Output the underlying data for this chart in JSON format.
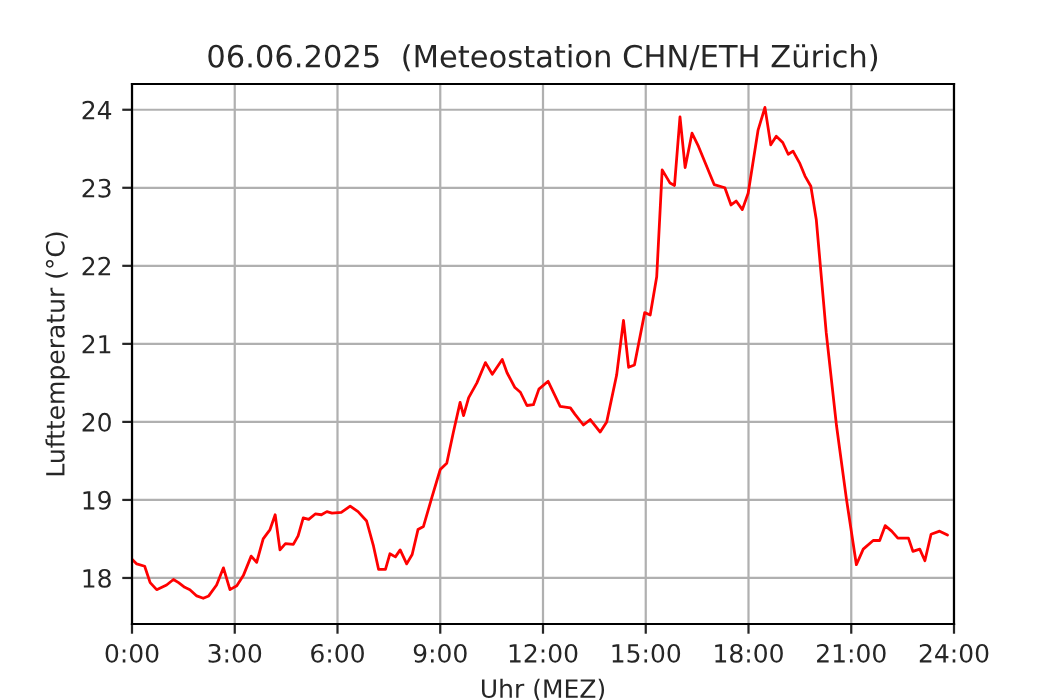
{
  "chart_data": {
    "type": "line",
    "title": "06.06.2025  (Meteostation CHN/ETH Zürich)",
    "xlabel": "Uhr (MEZ)",
    "ylabel": "Lufttemperatur (°C)",
    "x": [
      0.0,
      0.14,
      0.37,
      0.53,
      0.72,
      1.01,
      1.21,
      1.36,
      1.54,
      1.69,
      1.89,
      2.08,
      2.24,
      2.47,
      2.67,
      2.86,
      3.06,
      3.25,
      3.48,
      3.64,
      3.83,
      4.03,
      4.18,
      4.32,
      4.48,
      4.71,
      4.85,
      5.0,
      5.16,
      5.35,
      5.53,
      5.69,
      5.84,
      6.11,
      6.37,
      6.6,
      6.85,
      7.05,
      7.2,
      7.4,
      7.53,
      7.69,
      7.83,
      8.02,
      8.18,
      8.35,
      8.51,
      8.76,
      9.0,
      9.19,
      9.38,
      9.58,
      9.68,
      9.83,
      10.07,
      10.32,
      10.52,
      10.81,
      10.95,
      11.18,
      11.34,
      11.53,
      11.72,
      11.88,
      12.15,
      12.5,
      12.8,
      12.93,
      13.18,
      13.38,
      13.67,
      13.86,
      14.15,
      14.35,
      14.5,
      14.67,
      14.97,
      15.13,
      15.32,
      15.48,
      15.71,
      15.84,
      16.0,
      16.15,
      16.35,
      16.54,
      17.0,
      17.31,
      17.49,
      17.64,
      17.82,
      17.99,
      18.28,
      18.48,
      18.65,
      18.81,
      19.0,
      19.16,
      19.3,
      19.49,
      19.65,
      19.82,
      19.98,
      20.27,
      20.57,
      20.86,
      21.15,
      21.35,
      21.64,
      21.83,
      21.99,
      22.18,
      22.36,
      22.67,
      22.8,
      23.0,
      23.15,
      23.33,
      23.58,
      23.81
    ],
    "series": [
      {
        "color": "#ff0000",
        "values": [
          18.24,
          18.18,
          18.15,
          17.94,
          17.85,
          17.91,
          17.98,
          17.94,
          17.88,
          17.85,
          17.77,
          17.74,
          17.77,
          17.91,
          18.13,
          17.85,
          17.9,
          18.03,
          18.28,
          18.2,
          18.5,
          18.62,
          18.81,
          18.36,
          18.44,
          18.43,
          18.54,
          18.77,
          18.75,
          18.82,
          18.81,
          18.85,
          18.83,
          18.84,
          18.92,
          18.85,
          18.73,
          18.41,
          18.11,
          18.11,
          18.31,
          18.27,
          18.36,
          18.18,
          18.3,
          18.62,
          18.66,
          19.04,
          19.39,
          19.47,
          19.86,
          20.25,
          20.08,
          20.31,
          20.5,
          20.76,
          20.61,
          20.8,
          20.63,
          20.44,
          20.38,
          20.21,
          20.22,
          20.42,
          20.52,
          20.2,
          20.18,
          20.1,
          19.96,
          20.03,
          19.87,
          20.0,
          20.6,
          21.3,
          20.7,
          20.73,
          21.4,
          21.37,
          21.86,
          23.23,
          23.06,
          23.03,
          23.91,
          23.26,
          23.7,
          23.53,
          23.04,
          23.0,
          22.78,
          22.83,
          22.72,
          22.93,
          23.74,
          24.03,
          23.55,
          23.66,
          23.58,
          23.43,
          23.47,
          23.32,
          23.15,
          23.02,
          22.59,
          21.14,
          19.95,
          19.01,
          18.17,
          18.37,
          18.48,
          18.48,
          18.67,
          18.6,
          18.51,
          18.51,
          18.34,
          18.37,
          18.22,
          18.56,
          18.6,
          18.55
        ]
      }
    ],
    "xlim": [
      0,
      24
    ],
    "xticks": [
      {
        "value": 0,
        "label": "0:00"
      },
      {
        "value": 3,
        "label": "3:00"
      },
      {
        "value": 6,
        "label": "6:00"
      },
      {
        "value": 9,
        "label": "9:00"
      },
      {
        "value": 12,
        "label": "12:00"
      },
      {
        "value": 15,
        "label": "15:00"
      },
      {
        "value": 18,
        "label": "18:00"
      },
      {
        "value": 21,
        "label": "21:00"
      },
      {
        "value": 24,
        "label": "24:00"
      }
    ],
    "ylim": [
      17.41,
      24.33
    ],
    "yticks": [
      18,
      19,
      20,
      21,
      22,
      23,
      24
    ],
    "grid": true
  }
}
